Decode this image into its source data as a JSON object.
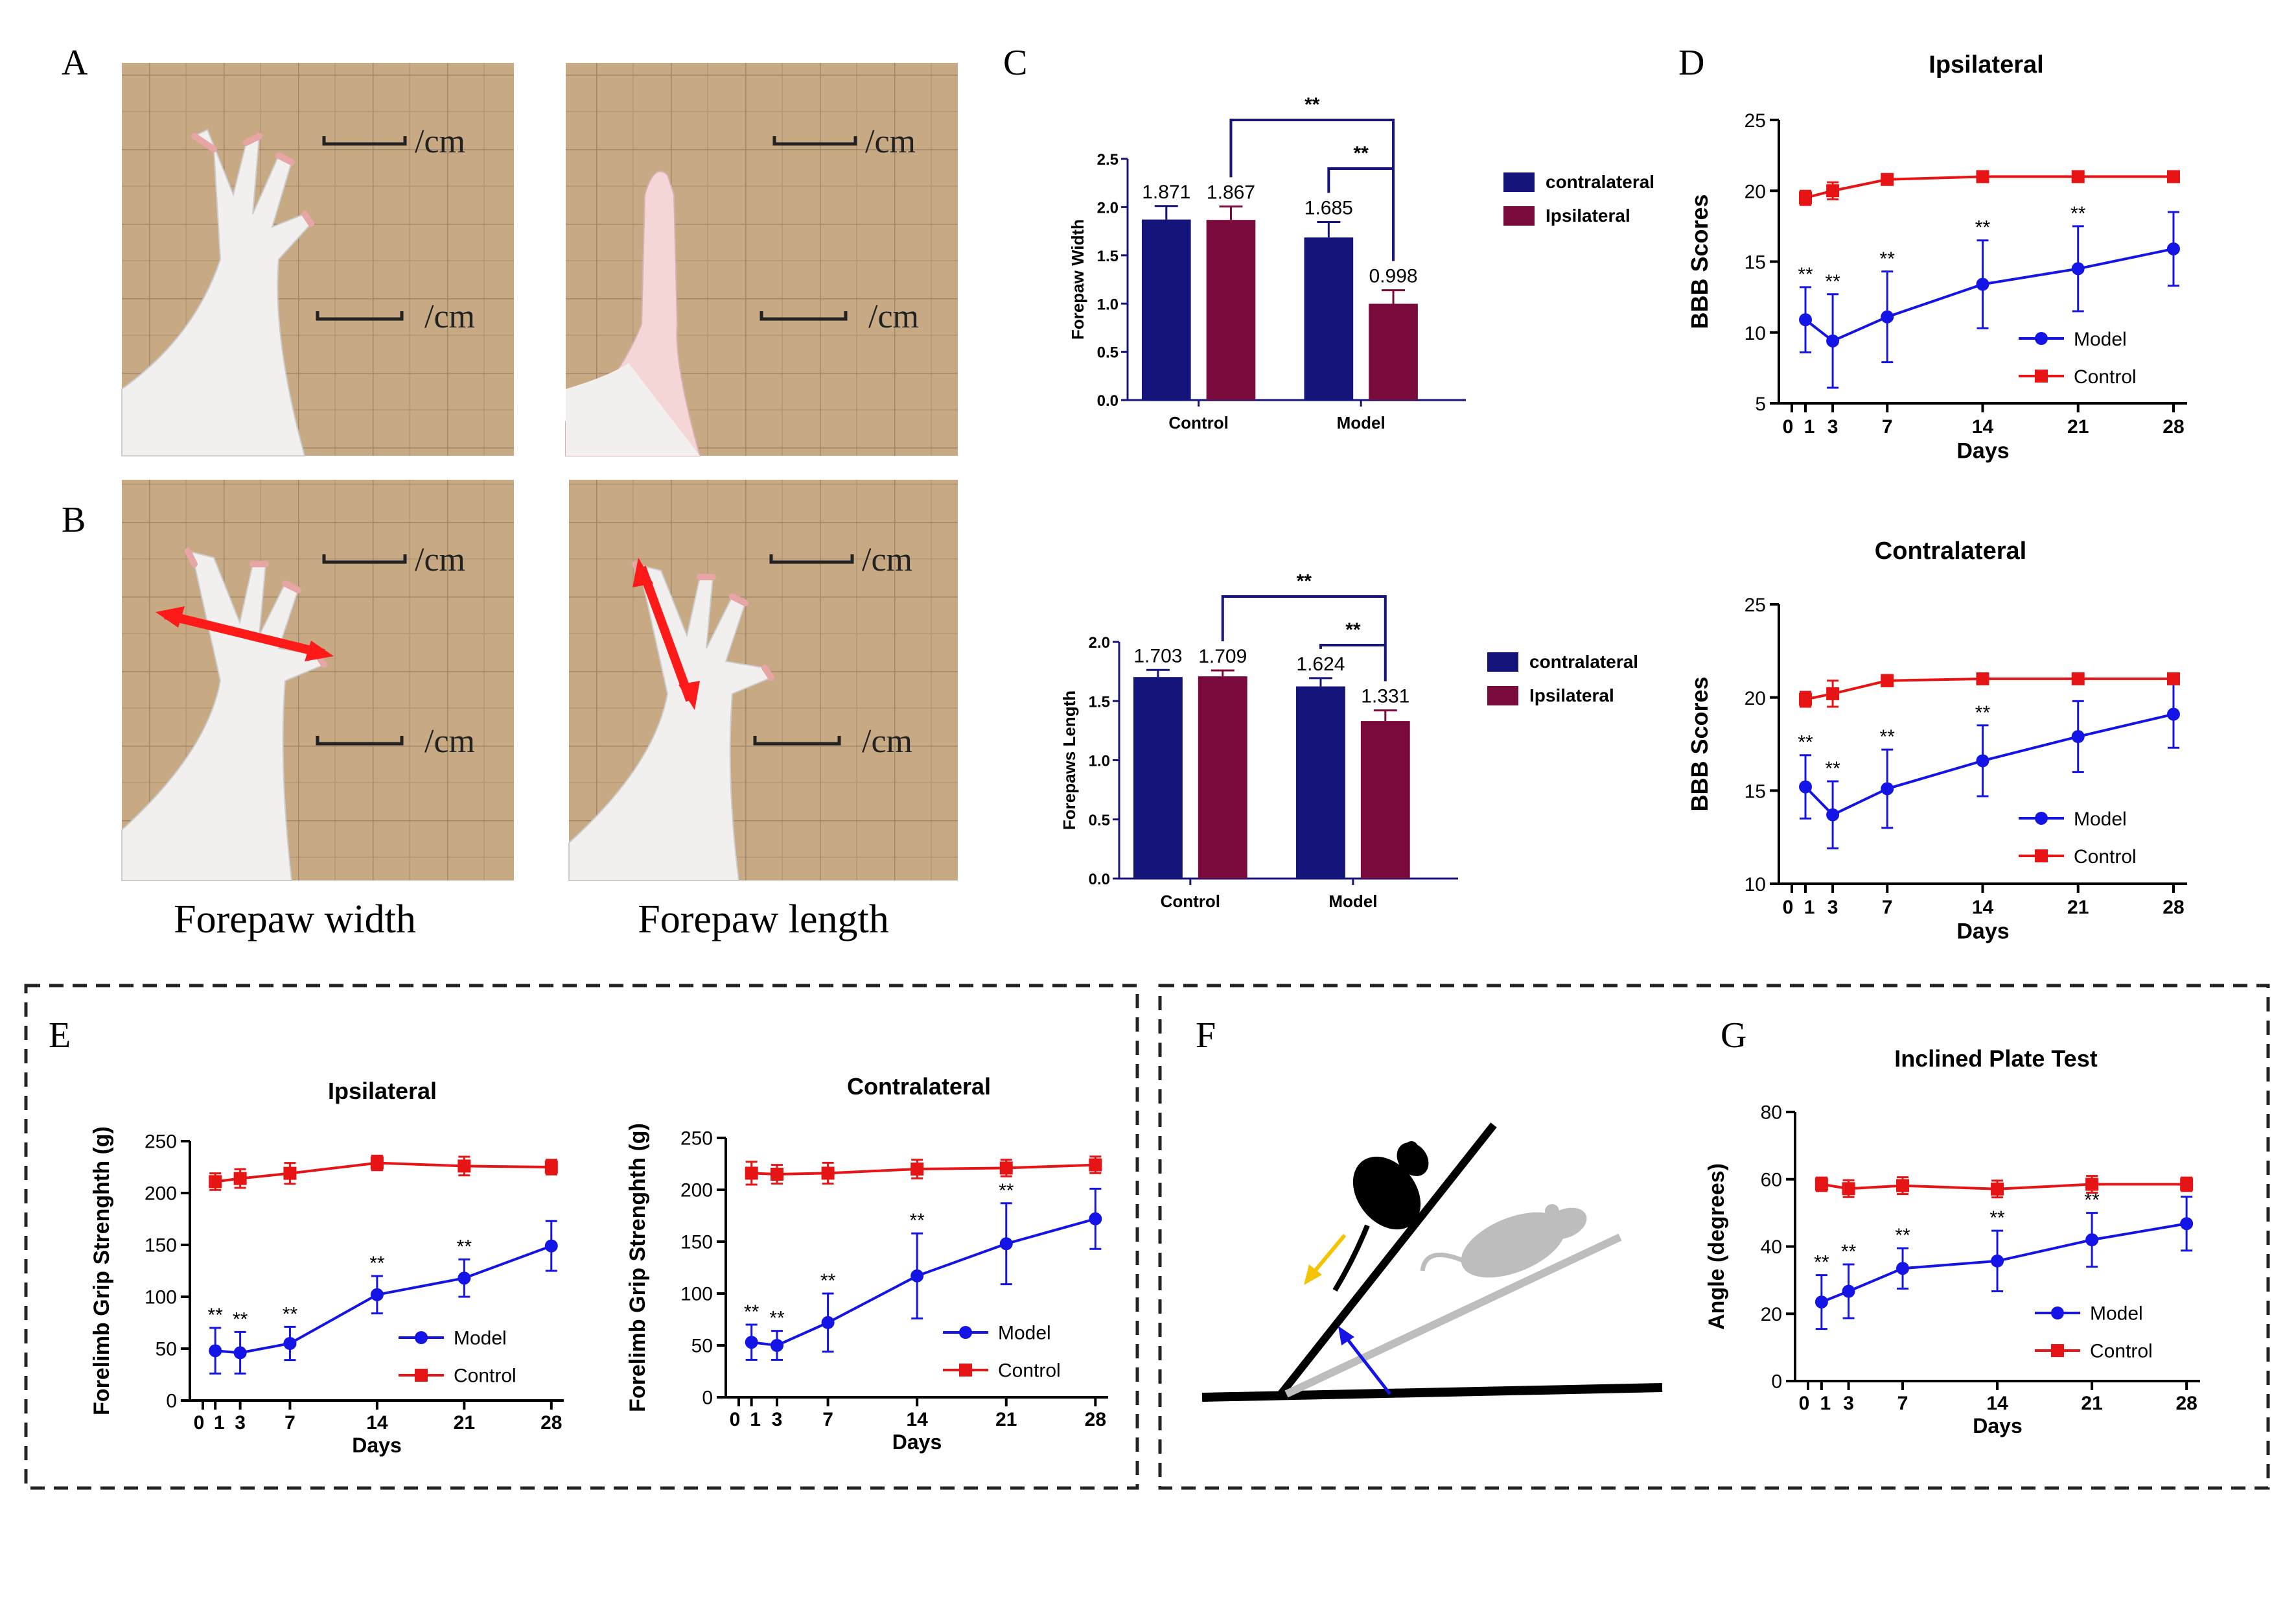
{
  "panel_letters": [
    "A",
    "B",
    "C",
    "D",
    "E",
    "F",
    "G"
  ],
  "photo_captions": [
    "Forepaw   width",
    "Forepaw   length"
  ],
  "photo_scale_text": "/cm",
  "colors": {
    "model": "#1414e6",
    "control": "#e61414",
    "contralateral": "#14147a",
    "ipsilateral": "#7a0a3c",
    "sig_bracket": "#14147a",
    "arrow_red": "#ff1a1a",
    "arrow_yellow": "#f5c400",
    "arrow_blue": "#1414e6"
  },
  "chart_data": [
    {
      "id": "C1",
      "type": "bar",
      "title": "",
      "ylabel": "Forepaw   Width",
      "xlabel": "",
      "categories": [
        "Control",
        "Model"
      ],
      "series": [
        {
          "name": "contralateral",
          "values": [
            1.871,
            1.685
          ],
          "err": [
            0.14,
            0.16
          ]
        },
        {
          "name": "Ipsilateral",
          "values": [
            1.867,
            0.998
          ],
          "err": [
            0.14,
            0.14
          ]
        }
      ],
      "value_labels": [
        "1.871",
        "1.867",
        "1.685",
        "0.998"
      ],
      "ylim": [
        0,
        2.5
      ],
      "yticks": [
        "0.0",
        "0.5",
        "1.0",
        "1.5",
        "2.0",
        "2.5"
      ],
      "significance": [
        "**",
        "**"
      ]
    },
    {
      "id": "C2",
      "type": "bar",
      "title": "",
      "ylabel": "Forepaws Length",
      "xlabel": "",
      "categories": [
        "Control",
        "Model"
      ],
      "series": [
        {
          "name": "contralateral",
          "values": [
            1.703,
            1.624
          ],
          "err": [
            0.06,
            0.07
          ]
        },
        {
          "name": "Ipsilateral",
          "values": [
            1.709,
            1.331
          ],
          "err": [
            0.05,
            0.09
          ]
        }
      ],
      "value_labels": [
        "1.703",
        "1.709",
        "1.624",
        "1.331"
      ],
      "ylim": [
        0,
        2.0
      ],
      "yticks": [
        "0.0",
        "0.5",
        "1.0",
        "1.5",
        "2.0"
      ],
      "significance": [
        "**",
        "**"
      ]
    },
    {
      "id": "D1",
      "type": "line",
      "title": "Ipsilateral",
      "xlabel": "Days",
      "ylabel": "BBB Scores",
      "xticks": [
        0,
        1,
        3,
        7,
        14,
        21,
        28
      ],
      "xlim": [
        0,
        29
      ],
      "ylim": [
        5,
        25
      ],
      "yticks": [
        5,
        10,
        15,
        20,
        25
      ],
      "series": [
        {
          "name": "Model",
          "x": [
            1,
            3,
            7,
            14,
            21,
            28
          ],
          "y": [
            10.9,
            9.4,
            11.1,
            13.4,
            14.5,
            15.9
          ],
          "err": [
            2.3,
            3.3,
            3.2,
            3.1,
            3.0,
            2.6
          ]
        },
        {
          "name": "Control",
          "x": [
            1,
            3,
            7,
            14,
            21,
            28
          ],
          "y": [
            19.5,
            20.0,
            20.8,
            21.0,
            21.0,
            21.0
          ],
          "err": [
            0.5,
            0.6,
            0.3,
            0.0,
            0.0,
            0.0
          ]
        }
      ],
      "annotations": [
        "**",
        "**",
        "**",
        "**",
        "**"
      ]
    },
    {
      "id": "D2",
      "type": "line",
      "title": "Contralateral",
      "xlabel": "Days",
      "ylabel": "BBB Scores",
      "xticks": [
        0,
        1,
        3,
        7,
        14,
        21,
        28
      ],
      "xlim": [
        0,
        29
      ],
      "ylim": [
        10,
        25
      ],
      "yticks": [
        10,
        15,
        20,
        25
      ],
      "series": [
        {
          "name": "Model",
          "x": [
            1,
            3,
            7,
            14,
            21,
            28
          ],
          "y": [
            15.2,
            13.7,
            15.1,
            16.6,
            17.9,
            19.1
          ],
          "err": [
            1.7,
            1.8,
            2.1,
            1.9,
            1.9,
            1.8
          ]
        },
        {
          "name": "Control",
          "x": [
            1,
            3,
            7,
            14,
            21,
            28
          ],
          "y": [
            19.9,
            20.2,
            20.9,
            21.0,
            21.0,
            21.0
          ],
          "err": [
            0.4,
            0.7,
            0.3,
            0.0,
            0.0,
            0.0
          ]
        }
      ],
      "annotations": [
        "**",
        "**",
        "**",
        "**"
      ]
    },
    {
      "id": "E1",
      "type": "line",
      "title": "Ipsilateral",
      "xlabel": "Days",
      "ylabel": "Forelimb Grip Strenghth (g)",
      "xticks": [
        0,
        1,
        3,
        7,
        14,
        21,
        28
      ],
      "xlim": [
        0,
        29
      ],
      "ylim": [
        0,
        250
      ],
      "yticks": [
        0,
        50,
        100,
        150,
        200,
        250
      ],
      "series": [
        {
          "name": "Model",
          "x": [
            1,
            3,
            7,
            14,
            21,
            28
          ],
          "y": [
            48,
            46,
            55,
            102,
            118,
            149
          ],
          "err": [
            22,
            20,
            16,
            18,
            18,
            24
          ]
        },
        {
          "name": "Control",
          "x": [
            1,
            3,
            7,
            14,
            21,
            28
          ],
          "y": [
            211,
            214,
            219,
            229,
            226,
            225
          ],
          "err": [
            8,
            9,
            10,
            7,
            9,
            7
          ]
        }
      ],
      "annotations": [
        "**",
        "**",
        "**",
        "**",
        "**"
      ]
    },
    {
      "id": "E2",
      "type": "line",
      "title": "Contralateral",
      "xlabel": "Days",
      "ylabel": "Forelimb Grip Strenghth (g)",
      "xticks": [
        0,
        1,
        3,
        7,
        14,
        21,
        28
      ],
      "xlim": [
        0,
        29
      ],
      "ylim": [
        0,
        250
      ],
      "yticks": [
        0,
        50,
        100,
        150,
        200,
        250
      ],
      "series": [
        {
          "name": "Model",
          "x": [
            1,
            3,
            7,
            14,
            21,
            28
          ],
          "y": [
            53,
            50,
            72,
            117,
            148,
            172
          ],
          "err": [
            17,
            14,
            28,
            41,
            39,
            29
          ]
        },
        {
          "name": "Control",
          "x": [
            1,
            3,
            7,
            14,
            21,
            28
          ],
          "y": [
            216,
            215,
            216,
            220,
            221,
            224
          ],
          "err": [
            11,
            9,
            10,
            9,
            8,
            8
          ]
        }
      ],
      "annotations": [
        "**",
        "**",
        "**",
        "**",
        "**"
      ]
    },
    {
      "id": "G",
      "type": "line",
      "title": "Inclined Plate Test",
      "xlabel": "Days",
      "ylabel": "Angle (degrees)",
      "xticks": [
        0,
        1,
        3,
        7,
        14,
        21,
        28
      ],
      "xlim": [
        0,
        29
      ],
      "ylim": [
        0,
        80
      ],
      "yticks": [
        0,
        20,
        40,
        60,
        80
      ],
      "series": [
        {
          "name": "Model",
          "x": [
            1,
            3,
            7,
            14,
            21,
            28
          ],
          "y": [
            23.5,
            26.7,
            33.5,
            35.7,
            42.0,
            46.8
          ],
          "err": [
            8,
            8,
            6,
            9,
            8,
            8
          ]
        },
        {
          "name": "Control",
          "x": [
            1,
            3,
            7,
            14,
            21,
            28
          ],
          "y": [
            58.5,
            57.2,
            58.1,
            57.1,
            58.5,
            58.5
          ],
          "err": [
            2,
            2.5,
            2.5,
            2.5,
            2.5,
            2
          ]
        }
      ],
      "annotations": [
        "**",
        "**",
        "**",
        "**",
        "**"
      ]
    }
  ]
}
